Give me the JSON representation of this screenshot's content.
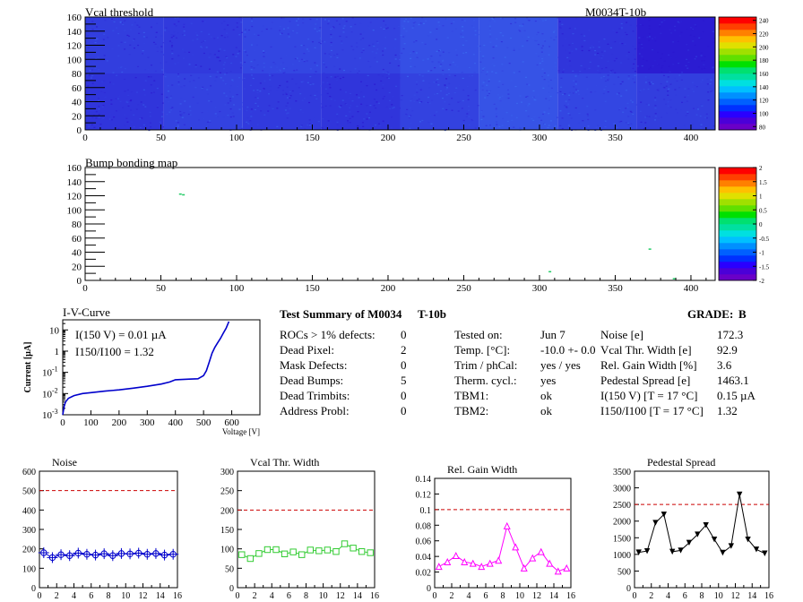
{
  "module": "M0034T-10b",
  "colors": {
    "axis": "#000000",
    "iv_curve": "#0000cc",
    "reference_line": "#cc0000",
    "noise": "#0000cc",
    "vcal_width": "#33cc33",
    "gain_width": "#ff00ff",
    "pedestal": "#000000",
    "heatmap_low": "#2a18d0",
    "heatmap_high": "#3b6cf0"
  },
  "palette": [
    "#6a00c8",
    "#4b00d8",
    "#2a00ff",
    "#0030ff",
    "#0060ff",
    "#0090ff",
    "#00c0ff",
    "#00e0e0",
    "#00e0a0",
    "#00e070",
    "#00e000",
    "#60e000",
    "#a0e000",
    "#e0e000",
    "#ffc000",
    "#ff8000",
    "#ff4000",
    "#ff0000"
  ],
  "summary": {
    "title_left": "Test Summary of M0034",
    "title_right": "T-10b",
    "grade_label": "GRADE:",
    "grade": "B",
    "col1": [
      {
        "label": "ROCs > 1% defects:",
        "value": "0"
      },
      {
        "label": "Dead Pixel:",
        "value": "2"
      },
      {
        "label": "Mask Defects:",
        "value": "0"
      },
      {
        "label": "Dead Bumps:",
        "value": "5"
      },
      {
        "label": "Dead Trimbits:",
        "value": "0"
      },
      {
        "label": "Address Probl:",
        "value": "0"
      }
    ],
    "col2": [
      {
        "label": "Tested on:",
        "value": "Jun 7"
      },
      {
        "label": "Temp. [°C]:",
        "value": "-10.0 +- 0.0"
      },
      {
        "label": "Trim / phCal:",
        "value": "yes / yes"
      },
      {
        "label": "Therm. cycl.:",
        "value": "yes"
      },
      {
        "label": "TBM1:",
        "value": "ok"
      },
      {
        "label": "TBM2:",
        "value": "ok"
      }
    ],
    "col3": [
      {
        "label": "Noise [e]",
        "value": "172.3"
      },
      {
        "label": "Vcal Thr. Width [e]",
        "value": "92.9"
      },
      {
        "label": "Rel. Gain Width [%]",
        "value": "3.6"
      },
      {
        "label": "Pedestal Spread [e]",
        "value": "1463.1"
      },
      {
        "label": "I(150 V) [T = 17 °C]",
        "value": "0.15 µA"
      },
      {
        "label": "I150/I100 [T = 17 °C]",
        "value": "1.32"
      }
    ]
  },
  "chart_data": [
    {
      "type": "heatmap",
      "title": "Vcal threshold",
      "x_ticks": [
        0,
        50,
        100,
        150,
        200,
        250,
        300,
        350,
        400
      ],
      "y_ticks": [
        0,
        20,
        40,
        60,
        80,
        100,
        120,
        140,
        160
      ],
      "xlim": [
        0,
        416
      ],
      "ylim": [
        0,
        160
      ],
      "z_ticks": [
        80,
        100,
        120,
        140,
        160,
        180,
        200,
        220,
        240
      ],
      "zlim": [
        75,
        245
      ],
      "roc_rows": [
        [
          108,
          106,
          112,
          110,
          116,
          118,
          104,
          92
        ],
        [
          104,
          110,
          106,
          104,
          110,
          118,
          112,
          108
        ]
      ]
    },
    {
      "type": "heatmap",
      "title": "Bump bonding map",
      "x_ticks": [
        0,
        50,
        100,
        150,
        200,
        250,
        300,
        350,
        400
      ],
      "y_ticks": [
        0,
        20,
        40,
        60,
        80,
        100,
        120,
        140,
        160
      ],
      "xlim": [
        0,
        416
      ],
      "ylim": [
        0,
        160
      ],
      "z_ticks": [
        -2,
        -1.5,
        -1,
        -0.5,
        0,
        0.5,
        1,
        1.5,
        2
      ],
      "zlim": [
        -2,
        2
      ],
      "points": [
        {
          "x": 62,
          "y": 122
        },
        {
          "x": 64,
          "y": 121
        },
        {
          "x": 306,
          "y": 12
        },
        {
          "x": 372,
          "y": 44
        },
        {
          "x": 388,
          "y": 2
        }
      ]
    },
    {
      "type": "line",
      "title": "I-V-Curve",
      "xlabel": "Voltage [V]",
      "ylabel": "Current [µA]",
      "log_y": true,
      "xlim": [
        0,
        700
      ],
      "ylim": [
        0.001,
        30
      ],
      "x_ticks": [
        0,
        100,
        200,
        300,
        400,
        500,
        600
      ],
      "y_ticks": [
        0.001,
        0.01,
        0.1,
        1,
        10
      ],
      "y_tick_labels": [
        "10-3",
        "10-2",
        "10-1",
        "1",
        "10"
      ],
      "annotation_1": "I(150 V) = 0.01 µA",
      "annotation_2": "I150/I100 = 1.32",
      "x": [
        0,
        5,
        10,
        20,
        40,
        70,
        100,
        150,
        200,
        250,
        300,
        350,
        380,
        400,
        450,
        480,
        500,
        510,
        520,
        530,
        540,
        550,
        560,
        570,
        580,
        590
      ],
      "y": [
        0.001,
        0.0025,
        0.004,
        0.006,
        0.008,
        0.01,
        0.011,
        0.013,
        0.015,
        0.018,
        0.022,
        0.028,
        0.035,
        0.045,
        0.048,
        0.05,
        0.07,
        0.12,
        0.3,
        0.8,
        1.5,
        2.5,
        4,
        7,
        12,
        25
      ]
    },
    {
      "type": "line",
      "title": "Noise",
      "xlim": [
        0,
        16
      ],
      "ylim": [
        0,
        600
      ],
      "x_ticks": [
        0,
        2,
        4,
        6,
        8,
        10,
        12,
        14,
        16
      ],
      "y_ticks": [
        0,
        100,
        200,
        300,
        400,
        500,
        600
      ],
      "reference": 500,
      "marker": "circle",
      "x": [
        0.5,
        1.5,
        2.5,
        3.5,
        4.5,
        5.5,
        6.5,
        7.5,
        8.5,
        9.5,
        10.5,
        11.5,
        12.5,
        13.5,
        14.5,
        15.5
      ],
      "y": [
        180,
        155,
        170,
        165,
        178,
        172,
        168,
        175,
        165,
        176,
        174,
        178,
        172,
        176,
        168,
        172
      ]
    },
    {
      "type": "line",
      "title": "Vcal Thr. Width",
      "xlim": [
        0,
        16
      ],
      "ylim": [
        0,
        300
      ],
      "x_ticks": [
        0,
        2,
        4,
        6,
        8,
        10,
        12,
        14,
        16
      ],
      "y_ticks": [
        0,
        50,
        100,
        150,
        200,
        250,
        300
      ],
      "reference": 200,
      "marker": "square",
      "x": [
        0.5,
        1.5,
        2.5,
        3.5,
        4.5,
        5.5,
        6.5,
        7.5,
        8.5,
        9.5,
        10.5,
        11.5,
        12.5,
        13.5,
        14.5,
        15.5
      ],
      "y": [
        85,
        75,
        88,
        98,
        98,
        87,
        92,
        85,
        97,
        95,
        97,
        93,
        113,
        102,
        93,
        90
      ]
    },
    {
      "type": "line",
      "title": "Rel. Gain Width",
      "xlim": [
        0,
        16
      ],
      "ylim": [
        0,
        0.14
      ],
      "x_ticks": [
        0,
        2,
        4,
        6,
        8,
        10,
        12,
        14,
        16
      ],
      "y_ticks": [
        0,
        0.02,
        0.04,
        0.06,
        0.08,
        0.1,
        0.12,
        0.14
      ],
      "reference": 0.1,
      "marker": "triangle",
      "x": [
        0.5,
        1.5,
        2.5,
        3.5,
        4.5,
        5.5,
        6.5,
        7.5,
        8.5,
        9.5,
        10.5,
        11.5,
        12.5,
        13.5,
        14.5,
        15.5
      ],
      "y": [
        0.027,
        0.033,
        0.041,
        0.033,
        0.031,
        0.027,
        0.031,
        0.035,
        0.079,
        0.052,
        0.025,
        0.038,
        0.046,
        0.031,
        0.021,
        0.025
      ]
    },
    {
      "type": "line",
      "title": "Pedestal Spread",
      "xlim": [
        0,
        16
      ],
      "ylim": [
        0,
        3500
      ],
      "x_ticks": [
        0,
        2,
        4,
        6,
        8,
        10,
        12,
        14,
        16
      ],
      "y_ticks": [
        0,
        500,
        1000,
        1500,
        2000,
        2500,
        3000,
        3500
      ],
      "reference": 2500,
      "marker": "triangle-down",
      "x": [
        0.5,
        1.5,
        2.5,
        3.5,
        4.5,
        5.5,
        6.5,
        7.5,
        8.5,
        9.5,
        10.5,
        11.5,
        12.5,
        13.5,
        14.5,
        15.5
      ],
      "y": [
        1060,
        1100,
        1950,
        2200,
        1080,
        1120,
        1350,
        1600,
        1880,
        1450,
        1050,
        1250,
        2800,
        1450,
        1150,
        1030
      ]
    }
  ]
}
